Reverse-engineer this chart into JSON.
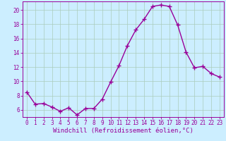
{
  "x": [
    0,
    1,
    2,
    3,
    4,
    5,
    6,
    7,
    8,
    9,
    10,
    11,
    12,
    13,
    14,
    15,
    16,
    17,
    18,
    19,
    20,
    21,
    22,
    23
  ],
  "y": [
    8.5,
    6.8,
    6.9,
    6.4,
    5.8,
    6.3,
    5.3,
    6.2,
    6.2,
    7.5,
    9.9,
    12.2,
    15.0,
    17.2,
    18.7,
    20.5,
    20.7,
    20.5,
    17.9,
    14.1,
    11.9,
    12.1,
    11.1,
    10.6
  ],
  "line_color": "#990099",
  "marker": "+",
  "markersize": 4,
  "markeredgewidth": 1.0,
  "linewidth": 1.0,
  "bg_color": "#cceeff",
  "grid_color": "#aaccbb",
  "yticks": [
    6,
    8,
    10,
    12,
    14,
    16,
    18,
    20
  ],
  "xlabel": "Windchill (Refroidissement éolien,°C)",
  "xlabel_color": "#990099",
  "xlabel_fontsize": 6.5,
  "tick_color": "#990099",
  "tick_fontsize": 5.5,
  "xlim": [
    -0.5,
    23.5
  ],
  "ylim": [
    5.0,
    21.2
  ]
}
